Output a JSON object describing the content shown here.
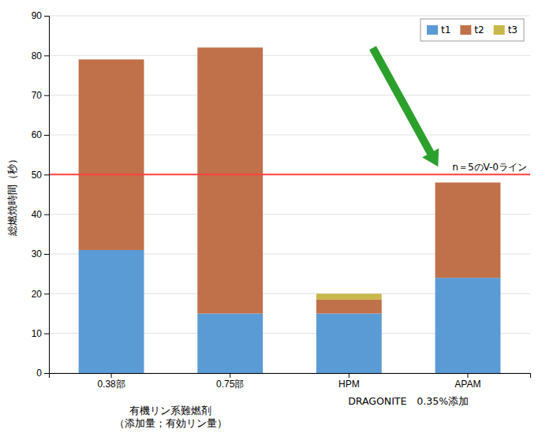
{
  "chart_data": {
    "type": "bar",
    "stacked": true,
    "categories": [
      "0.38部",
      "0.75部",
      "HPM",
      "APAM"
    ],
    "series": [
      {
        "name": "t1",
        "color": "#5B9BD5",
        "values": [
          31,
          15,
          15,
          24
        ]
      },
      {
        "name": "t2",
        "color": "#C0714A",
        "values": [
          48,
          67,
          3.5,
          24
        ]
      },
      {
        "name": "t3",
        "color": "#C8B84A",
        "values": [
          0,
          0,
          1.5,
          0
        ]
      }
    ],
    "ylabel": "総燃焼時間（秒）",
    "xlabel": [
      "有機リン系難燃剤\n（添加量；有効リン量）",
      "DRAGONITE　0.35%添加"
    ],
    "ylim": [
      0,
      90
    ],
    "yticks": [
      0,
      10,
      20,
      30,
      40,
      50,
      60,
      70,
      80,
      90
    ],
    "grid": true,
    "legend": "upper right",
    "annotations": [
      {
        "text": "n＝5のV-0ライン",
        "y": 50,
        "color": "#FF4040"
      }
    ]
  }
}
